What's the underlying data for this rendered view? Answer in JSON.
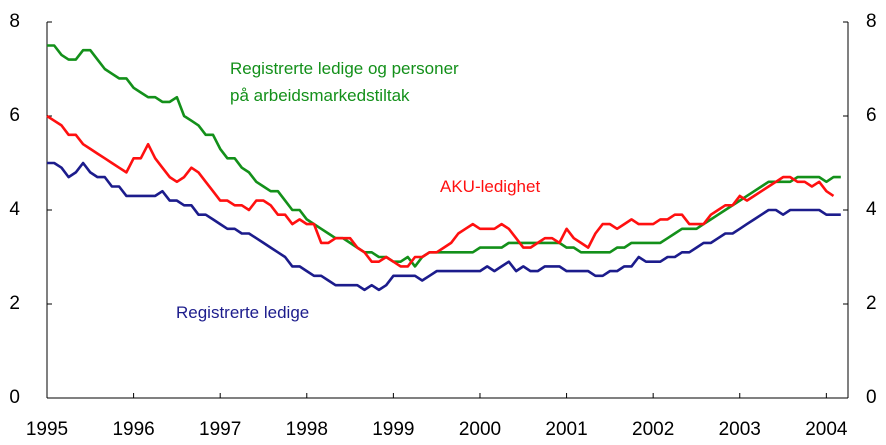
{
  "chart_data": {
    "type": "line",
    "x": [
      1995,
      1995.083,
      1995.167,
      1995.25,
      1995.333,
      1995.417,
      1995.5,
      1995.583,
      1995.667,
      1995.75,
      1995.833,
      1995.917,
      1996,
      1996.083,
      1996.167,
      1996.25,
      1996.333,
      1996.417,
      1996.5,
      1996.583,
      1996.667,
      1996.75,
      1996.833,
      1996.917,
      1997,
      1997.083,
      1997.167,
      1997.25,
      1997.333,
      1997.417,
      1997.5,
      1997.583,
      1997.667,
      1997.75,
      1997.833,
      1997.917,
      1998,
      1998.083,
      1998.167,
      1998.25,
      1998.333,
      1998.417,
      1998.5,
      1998.583,
      1998.667,
      1998.75,
      1998.833,
      1998.917,
      1999,
      1999.083,
      1999.167,
      1999.25,
      1999.333,
      1999.417,
      1999.5,
      1999.583,
      1999.667,
      1999.75,
      1999.833,
      1999.917,
      2000,
      2000.083,
      2000.167,
      2000.25,
      2000.333,
      2000.417,
      2000.5,
      2000.583,
      2000.667,
      2000.75,
      2000.833,
      2000.917,
      2001,
      2001.083,
      2001.167,
      2001.25,
      2001.333,
      2001.417,
      2001.5,
      2001.583,
      2001.667,
      2001.75,
      2001.833,
      2001.917,
      2002,
      2002.083,
      2002.167,
      2002.25,
      2002.333,
      2002.417,
      2002.5,
      2002.583,
      2002.667,
      2002.75,
      2002.833,
      2002.917,
      2003,
      2003.083,
      2003.167,
      2003.25,
      2003.333,
      2003.417,
      2003.5,
      2003.583,
      2003.667,
      2003.75,
      2003.833,
      2003.917,
      2004,
      2004.083,
      2004.167
    ],
    "series": [
      {
        "name": "Registrerte ledige og personer på arbeidsmarkedstiltak",
        "color": "#13901a",
        "values": [
          7.5,
          7.5,
          7.3,
          7.2,
          7.2,
          7.4,
          7.4,
          7.2,
          7.0,
          6.9,
          6.8,
          6.8,
          6.6,
          6.5,
          6.4,
          6.4,
          6.3,
          6.3,
          6.4,
          6.0,
          5.9,
          5.8,
          5.6,
          5.6,
          5.3,
          5.1,
          5.1,
          4.9,
          4.8,
          4.6,
          4.5,
          4.4,
          4.4,
          4.2,
          4.0,
          4.0,
          3.8,
          3.7,
          3.6,
          3.5,
          3.4,
          3.4,
          3.3,
          3.2,
          3.1,
          3.1,
          3.0,
          3.0,
          2.9,
          2.9,
          3.0,
          2.8,
          3.0,
          3.1,
          3.1,
          3.1,
          3.1,
          3.1,
          3.1,
          3.1,
          3.2,
          3.2,
          3.2,
          3.2,
          3.3,
          3.3,
          3.3,
          3.3,
          3.3,
          3.3,
          3.3,
          3.3,
          3.2,
          3.2,
          3.1,
          3.1,
          3.1,
          3.1,
          3.1,
          3.2,
          3.2,
          3.3,
          3.3,
          3.3,
          3.3,
          3.3,
          3.4,
          3.5,
          3.6,
          3.6,
          3.6,
          3.7,
          3.8,
          3.9,
          4.0,
          4.1,
          4.2,
          4.3,
          4.4,
          4.5,
          4.6,
          4.6,
          4.6,
          4.6,
          4.7,
          4.7,
          4.7,
          4.7,
          4.6,
          4.7,
          4.7
        ]
      },
      {
        "name": "AKU-ledighet",
        "color": "#ff1010",
        "values": [
          6.0,
          5.9,
          5.8,
          5.6,
          5.6,
          5.4,
          5.3,
          5.2,
          5.1,
          5.0,
          4.9,
          4.8,
          5.1,
          5.1,
          5.4,
          5.1,
          4.9,
          4.7,
          4.6,
          4.7,
          4.9,
          4.8,
          4.6,
          4.4,
          4.2,
          4.2,
          4.1,
          4.1,
          4.0,
          4.2,
          4.2,
          4.1,
          3.9,
          3.9,
          3.7,
          3.8,
          3.7,
          3.7,
          3.3,
          3.3,
          3.4,
          3.4,
          3.4,
          3.2,
          3.1,
          2.9,
          2.9,
          3.0,
          2.9,
          2.8,
          2.8,
          3.0,
          3.0,
          3.1,
          3.1,
          3.2,
          3.3,
          3.5,
          3.6,
          3.7,
          3.6,
          3.6,
          3.6,
          3.7,
          3.6,
          3.4,
          3.2,
          3.2,
          3.3,
          3.4,
          3.4,
          3.3,
          3.6,
          3.4,
          3.3,
          3.2,
          3.5,
          3.7,
          3.7,
          3.6,
          3.7,
          3.8,
          3.7,
          3.7,
          3.7,
          3.8,
          3.8,
          3.9,
          3.9,
          3.7,
          3.7,
          3.7,
          3.9,
          4.0,
          4.1,
          4.1,
          4.3,
          4.2,
          4.3,
          4.4,
          4.5,
          4.6,
          4.7,
          4.7,
          4.6,
          4.6,
          4.5,
          4.6,
          4.4,
          4.3,
          null
        ]
      },
      {
        "name": "Registrerte ledige",
        "color": "#1c1c8c",
        "values": [
          5.0,
          5.0,
          4.9,
          4.7,
          4.8,
          5.0,
          4.8,
          4.7,
          4.7,
          4.5,
          4.5,
          4.3,
          4.3,
          4.3,
          4.3,
          4.3,
          4.4,
          4.2,
          4.2,
          4.1,
          4.1,
          3.9,
          3.9,
          3.8,
          3.7,
          3.6,
          3.6,
          3.5,
          3.5,
          3.4,
          3.3,
          3.2,
          3.1,
          3.0,
          2.8,
          2.8,
          2.7,
          2.6,
          2.6,
          2.5,
          2.4,
          2.4,
          2.4,
          2.4,
          2.3,
          2.4,
          2.3,
          2.4,
          2.6,
          2.6,
          2.6,
          2.6,
          2.5,
          2.6,
          2.7,
          2.7,
          2.7,
          2.7,
          2.7,
          2.7,
          2.7,
          2.8,
          2.7,
          2.8,
          2.9,
          2.7,
          2.8,
          2.7,
          2.7,
          2.8,
          2.8,
          2.8,
          2.7,
          2.7,
          2.7,
          2.7,
          2.6,
          2.6,
          2.7,
          2.7,
          2.8,
          2.8,
          3.0,
          2.9,
          2.9,
          2.9,
          3.0,
          3.0,
          3.1,
          3.1,
          3.2,
          3.3,
          3.3,
          3.4,
          3.5,
          3.5,
          3.6,
          3.7,
          3.8,
          3.9,
          4.0,
          4.0,
          3.9,
          4.0,
          4.0,
          4.0,
          4.0,
          4.0,
          3.9,
          3.9,
          3.9
        ]
      }
    ],
    "xlim": [
      1995,
      2004.25
    ],
    "xticks": [
      1995,
      1996,
      1997,
      1998,
      1999,
      2000,
      2001,
      2002,
      2003,
      2004
    ],
    "ylim": [
      0,
      8
    ],
    "yticks": [
      0,
      2,
      4,
      6,
      8
    ],
    "y2lim": [
      0,
      8
    ],
    "y2ticks": [
      0,
      2,
      4,
      6,
      8
    ]
  }
}
